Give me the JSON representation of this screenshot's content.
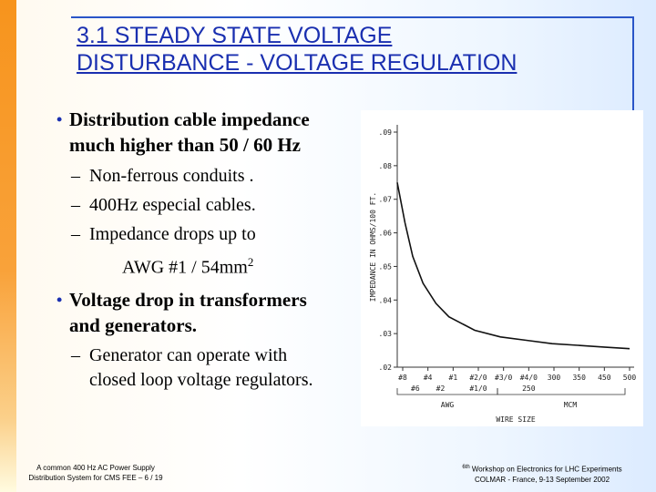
{
  "slide": {
    "title_line1": "3.1 STEADY STATE VOLTAGE",
    "title_line2": "DISTURBANCE - VOLTAGE REGULATION"
  },
  "bullets": [
    {
      "text_line1": "Distribution cable impedance",
      "text_line2": "much higher than 50 / 60 Hz",
      "subitems": [
        "Non-ferrous conduits .",
        "400Hz especial cables.",
        "Impedance drops up to"
      ],
      "continuation": "AWG #1 / 54mm",
      "continuation_sup": "2"
    },
    {
      "text_line1": "Voltage drop in transformers",
      "text_line2": "and generators.",
      "subitem_line1": "Generator can operate with",
      "subitem_line2": "closed loop voltage regulators."
    }
  ],
  "footer": {
    "left_line1": "A common 400 Hz AC Power Supply",
    "left_line2": "Distribution System for CMS FEE – 6 / 19",
    "right_sup": "6th",
    "right_line1": " Workshop on Electronics for LHC Experiments",
    "right_line2": "COLMAR - France, 9-13 September 2002"
  },
  "colors": {
    "title": "#1a2fb0",
    "band": "#f7941d",
    "frame": "#2a55c8"
  },
  "chart_data": {
    "type": "line",
    "ylabel": "IMPEDANCE IN OHMS/100 FT.",
    "xlabel": "WIRE SIZE",
    "y_ticks": [
      ".09",
      ".08",
      ".07",
      ".06",
      ".05",
      ".04",
      ".03",
      ".02"
    ],
    "x_ticks": [
      "#8",
      "#4",
      "#1",
      "#2/0",
      "#3/0",
      "#4/0",
      "300",
      "350",
      "450",
      "500"
    ],
    "x_ticks_lower": [
      "#6",
      "#2",
      "#1/0",
      "250"
    ],
    "group_labels": [
      "AWG",
      "MCM"
    ],
    "ylim": [
      0.02,
      0.09
    ],
    "series": [
      {
        "x": [
          0,
          0.3,
          0.6,
          1,
          1.5,
          2,
          3,
          4,
          5,
          6,
          7,
          8,
          9
        ],
        "values": [
          0.075,
          0.063,
          0.053,
          0.045,
          0.039,
          0.035,
          0.031,
          0.029,
          0.028,
          0.027,
          0.0265,
          0.026,
          0.0255
        ]
      }
    ],
    "x_range": [
      0,
      9
    ],
    "grid": false
  }
}
